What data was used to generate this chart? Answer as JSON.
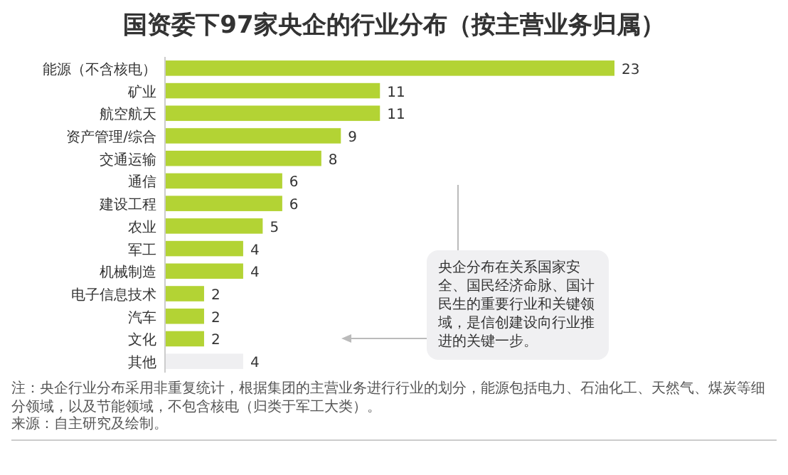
{
  "chart_data": {
    "type": "bar",
    "orientation": "horizontal",
    "title": "国资委下97家央企的行业分布（按主营业务归属）",
    "categories": [
      "能源（不含核电）",
      "矿业",
      "航空航天",
      "资产管理/综合",
      "交通运输",
      "通信",
      "建设工程",
      "农业",
      "军工",
      "机械制造",
      "电子信息技术",
      "汽车",
      "文化",
      "其他"
    ],
    "values": [
      23,
      11,
      11,
      9,
      8,
      6,
      6,
      5,
      4,
      4,
      2,
      2,
      2,
      4
    ],
    "colors": [
      "#b3d334",
      "#b3d334",
      "#b3d334",
      "#b3d334",
      "#b3d334",
      "#b3d334",
      "#b3d334",
      "#b3d334",
      "#b3d334",
      "#b3d334",
      "#b3d334",
      "#b3d334",
      "#b3d334",
      "#efeff1"
    ],
    "data_labels": true,
    "annotations": [
      "央企分布在关系国家安全、国民经济命脉、国计民生的重要行业和关键领域，是信创建设向行业推进的关键一步。",
      "注：央企行业分布采用非重复统计，根据集团的主营业务进行行业的划分，能源包括电力、石油化工、天然气、煤炭等细分领域，以及节能领域，不包含核电（归类于军工大类）。",
      "来源：自主研究及绘制。"
    ]
  }
}
